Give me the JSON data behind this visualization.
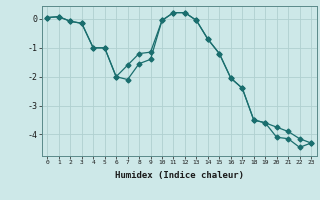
{
  "xlabel": "Humidex (Indice chaleur)",
  "ylabel": "",
  "background_color": "#cde8e8",
  "grid_color": "#b0d0d0",
  "line_color": "#1a6e6e",
  "xlim": [
    -0.5,
    23.5
  ],
  "ylim": [
    -4.75,
    0.45
  ],
  "yticks": [
    0,
    -1,
    -2,
    -3,
    -4
  ],
  "xticks": [
    0,
    1,
    2,
    3,
    4,
    5,
    6,
    7,
    8,
    9,
    10,
    11,
    12,
    13,
    14,
    15,
    16,
    17,
    18,
    19,
    20,
    21,
    22,
    23
  ],
  "series1_x": [
    0,
    1,
    2,
    3,
    4,
    5,
    6,
    7,
    8,
    9,
    10,
    11,
    12,
    13,
    14,
    15,
    16,
    17,
    18,
    19,
    20,
    21,
    22,
    23
  ],
  "series1_y": [
    0.05,
    0.08,
    -0.08,
    -0.15,
    -1.0,
    -1.0,
    -2.0,
    -2.1,
    -1.55,
    -1.4,
    -0.05,
    0.22,
    0.22,
    -0.05,
    -0.7,
    -1.2,
    -2.05,
    -2.4,
    -3.5,
    -3.6,
    -4.1,
    -4.15,
    -4.45,
    -4.3
  ],
  "series2_x": [
    0,
    1,
    2,
    3,
    4,
    5,
    6,
    7,
    8,
    9,
    10,
    11,
    12,
    13,
    14,
    15,
    16,
    17,
    18,
    19,
    20,
    21,
    22,
    23
  ],
  "series2_y": [
    0.05,
    0.08,
    -0.08,
    -0.15,
    -1.0,
    -1.0,
    -2.0,
    -1.6,
    -1.2,
    -1.15,
    -0.05,
    0.22,
    0.22,
    -0.05,
    -0.7,
    -1.2,
    -2.05,
    -2.4,
    -3.5,
    -3.6,
    -3.75,
    -3.9,
    -4.15,
    -4.3
  ],
  "marker": "D",
  "markersize": 2.5,
  "linewidth": 0.9
}
